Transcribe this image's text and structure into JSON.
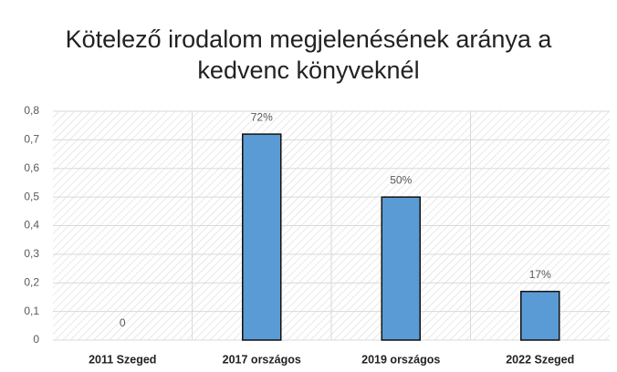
{
  "chart_data": {
    "type": "bar",
    "title": "Kötelező irodalom megjelenésének aránya a kedvenc könyveknél",
    "categories": [
      "2011 Szeged",
      "2017 országos",
      "2019 országos",
      "2022 Szeged"
    ],
    "values": [
      0,
      0.72,
      0.5,
      0.17
    ],
    "value_labels": [
      "0",
      "72%",
      "50%",
      "17%"
    ],
    "color": "#5b9bd5",
    "ylim": [
      0,
      0.8
    ],
    "yticks": [
      0,
      {
        "value": 0.1,
        "label": "0,1"
      },
      {
        "value": 0.2,
        "label": "0,2"
      },
      {
        "value": 0.3,
        "label": "0,3"
      },
      {
        "value": 0.4,
        "label": "0,4"
      },
      {
        "value": 0.5,
        "label": "0,5"
      },
      {
        "value": 0.6,
        "label": "0,6"
      },
      {
        "value": 0.7,
        "label": "0,7"
      },
      {
        "value": 0.8,
        "label": "0,8"
      }
    ],
    "grid": true
  }
}
